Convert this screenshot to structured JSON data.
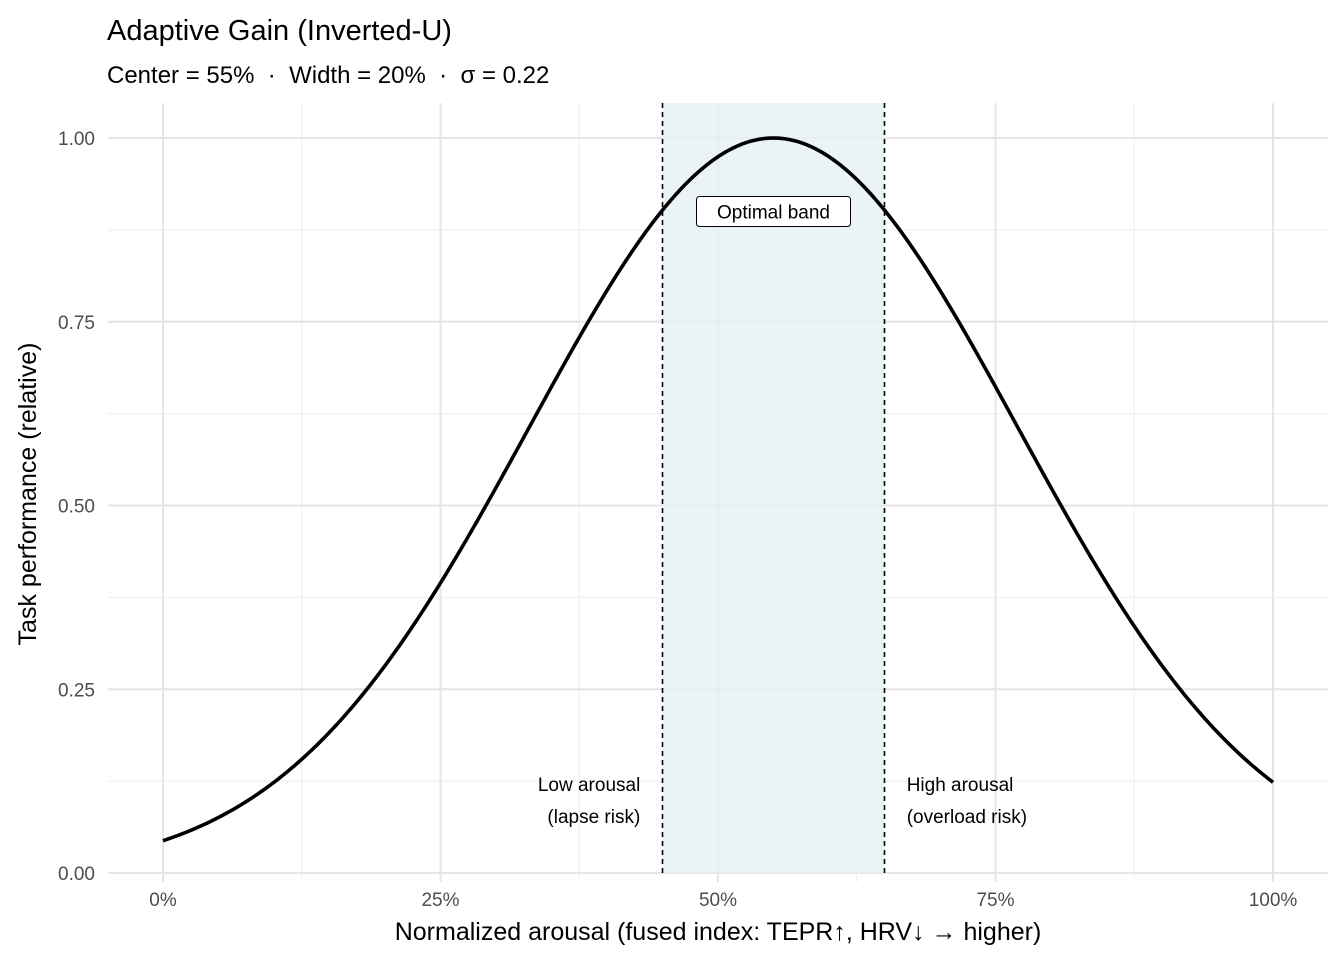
{
  "chart_data": {
    "type": "line",
    "title": "Adaptive Gain (Inverted-U)",
    "subtitle": "Center = 55%  ·  Width = 20%  ·  σ = 0.22",
    "xlabel": "Normalized arousal (fused index: TEPR↑, HRV↓ → higher)",
    "ylabel": "Task performance (relative)",
    "xlim": [
      0,
      1
    ],
    "ylim": [
      0,
      1
    ],
    "x_ticks": [
      0,
      0.25,
      0.5,
      0.75,
      1
    ],
    "x_tick_labels": [
      "0%",
      "25%",
      "50%",
      "75%",
      "100%"
    ],
    "y_ticks": [
      0,
      0.25,
      0.5,
      0.75,
      1
    ],
    "y_tick_labels": [
      "0.00",
      "0.25",
      "0.50",
      "0.75",
      "1.00"
    ],
    "grid": true,
    "curve": {
      "function": "gaussian",
      "center": 0.55,
      "sigma": 0.22,
      "color": "#000000"
    },
    "band": {
      "from": 0.45,
      "to": 0.65,
      "fill": "#EAF4F7",
      "label": "Optimal band",
      "label_x": 0.55,
      "label_y": 0.9
    },
    "annotations": [
      {
        "lines": [
          "Low arousal",
          "(lapse risk)"
        ],
        "x": 0.43,
        "y": 0.12,
        "align": "right"
      },
      {
        "lines": [
          "High arousal",
          "(overload risk)"
        ],
        "x": 0.67,
        "y": 0.12,
        "align": "left"
      }
    ]
  }
}
